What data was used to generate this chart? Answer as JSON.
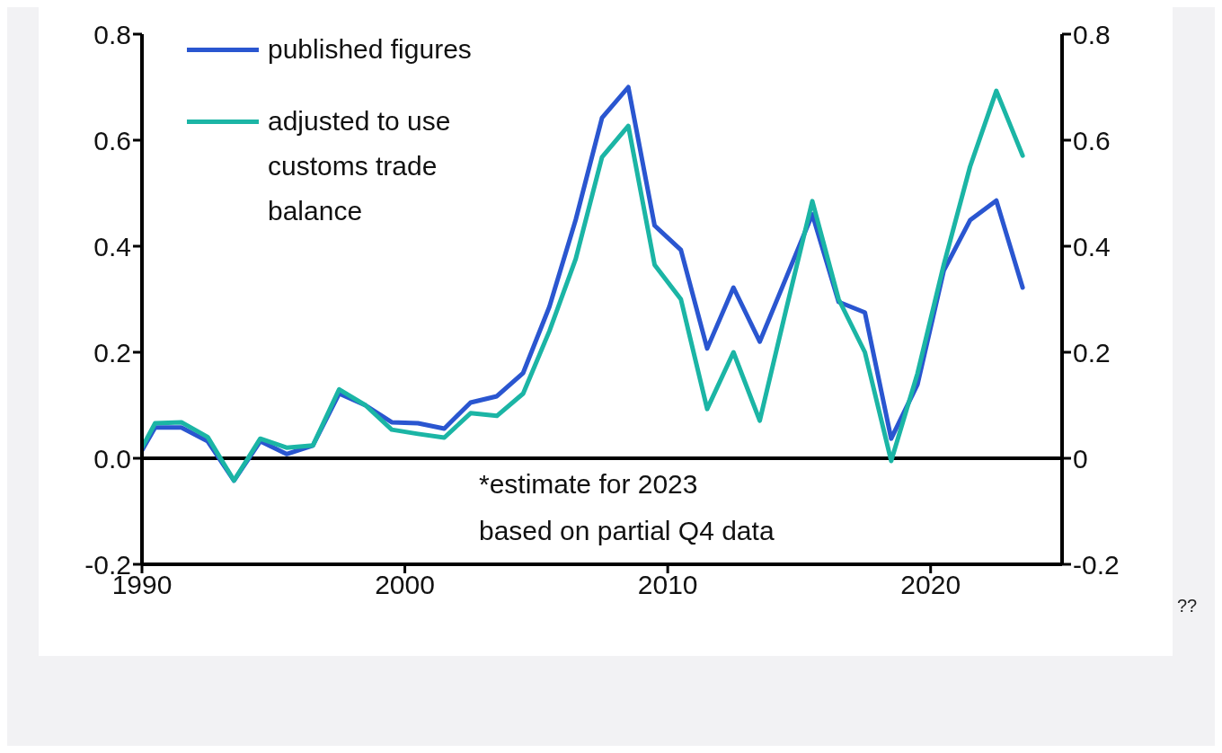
{
  "chart_data": {
    "type": "line",
    "x": [
      1990,
      1990.5,
      1991.5,
      1992.5,
      1993.5,
      1994.5,
      1995.5,
      1996.5,
      1997.5,
      1998.5,
      1999.5,
      2000.5,
      2001.5,
      2002.5,
      2003.5,
      2004.5,
      2005.5,
      2006.5,
      2007.5,
      2008.5,
      2009.5,
      2010.5,
      2011.5,
      2012.5,
      2013.5,
      2014.5,
      2015.5,
      2016.5,
      2017.5,
      2018.5,
      2019.5,
      2020.5,
      2021.5,
      2022.5,
      2023.5
    ],
    "series": [
      {
        "name": "published figures",
        "color": "#2a56d0",
        "values": [
          0.015,
          0.058,
          0.058,
          0.032,
          -0.042,
          0.032,
          0.008,
          0.024,
          0.122,
          0.1,
          0.068,
          0.066,
          0.056,
          0.105,
          0.117,
          0.161,
          0.286,
          0.45,
          0.642,
          0.7,
          0.439,
          0.393,
          0.207,
          0.322,
          0.22,
          0.34,
          0.46,
          0.295,
          0.275,
          0.037,
          0.139,
          0.354,
          0.449,
          0.486,
          0.322
        ]
      },
      {
        "name": "adjusted to use customs trade balance",
        "color": "#1bb5a5",
        "values": [
          0.02,
          0.066,
          0.068,
          0.04,
          -0.042,
          0.037,
          0.02,
          0.024,
          0.13,
          0.1,
          0.054,
          0.046,
          0.039,
          0.085,
          0.08,
          0.122,
          0.24,
          0.376,
          0.568,
          0.627,
          0.365,
          0.3,
          0.093,
          0.2,
          0.071,
          0.28,
          0.485,
          0.3,
          0.2,
          -0.005,
          0.16,
          0.365,
          0.55,
          0.693,
          0.571
        ]
      }
    ],
    "xlim": [
      1990,
      2025
    ],
    "xticks": [
      1990,
      2000,
      2010,
      2020
    ],
    "ylim": [
      -0.2,
      0.8
    ],
    "yticks": [
      {
        "value": -0.2,
        "label": "-0.2"
      },
      {
        "value": 0,
        "label": "0.0"
      },
      0.2,
      0.4,
      0.6,
      0.8
    ],
    "y2lim": [
      -0.2,
      0.8
    ],
    "y2ticks": [
      -0.2,
      0,
      0.2,
      0.4,
      0.6,
      0.8
    ],
    "ref_lines": [
      {
        "axis": "y",
        "value": 0,
        "color": "#000000"
      }
    ],
    "legend": "top left",
    "grid": false,
    "marker": "none",
    "line_style": "solid",
    "annotations": [
      "*estimate for 2023\nbased on partial Q4 data",
      "??"
    ]
  }
}
